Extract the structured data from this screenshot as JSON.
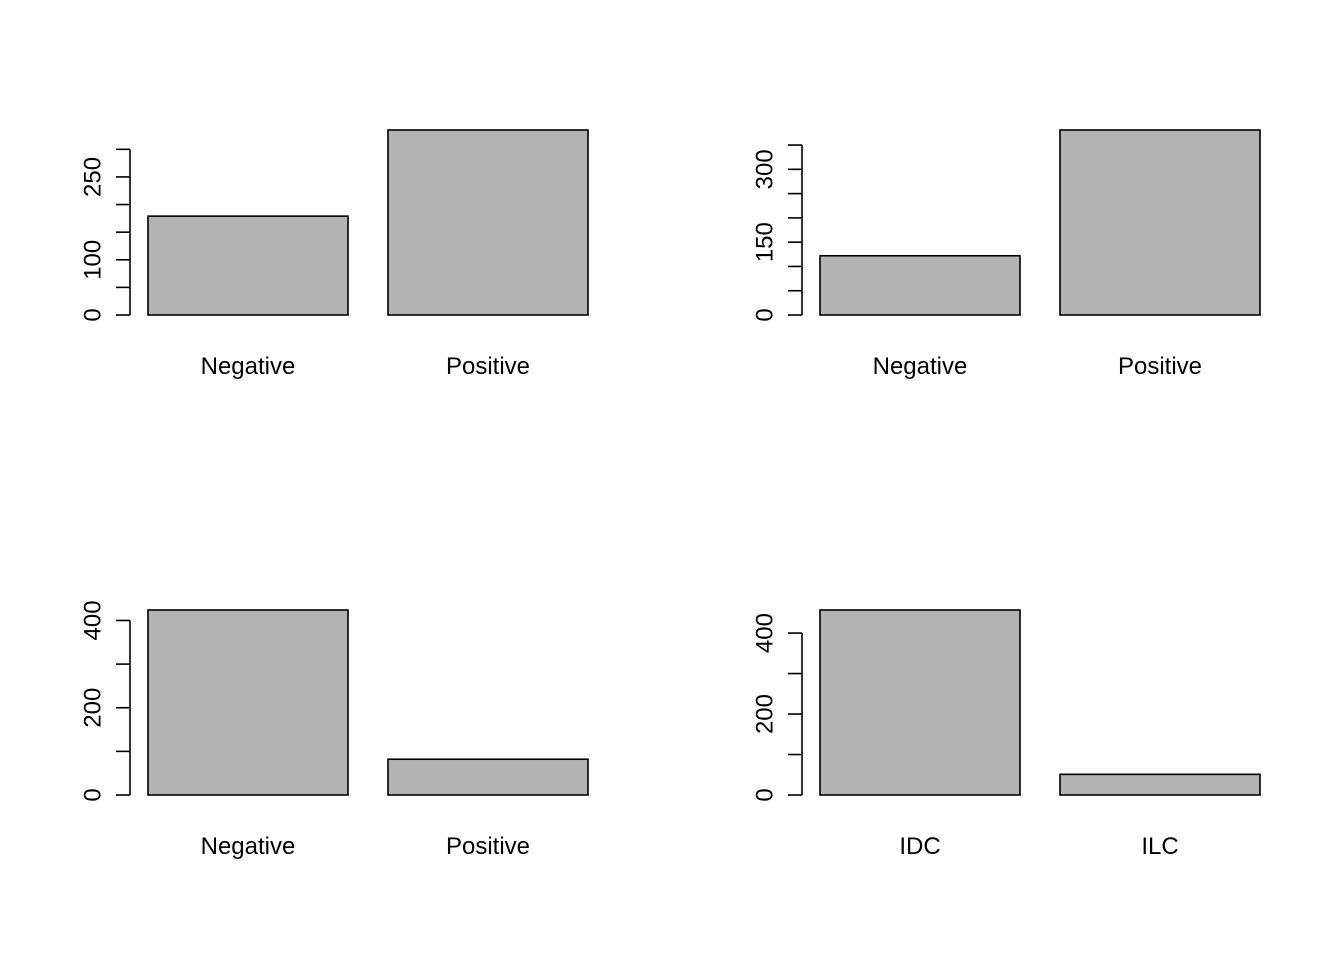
{
  "chart_data": [
    {
      "type": "bar",
      "categories": [
        "Negative",
        "Positive"
      ],
      "values": [
        179,
        335
      ],
      "yticks": [
        0,
        100,
        250
      ],
      "yminor_step": 50,
      "ylim": [
        0,
        335
      ],
      "bar_color": "#b3b3b3",
      "title": "",
      "xlabel": "",
      "ylabel": ""
    },
    {
      "type": "bar",
      "categories": [
        "Negative",
        "Positive"
      ],
      "values": [
        122,
        381
      ],
      "yticks": [
        0,
        150,
        300
      ],
      "yminor_step": 50,
      "ylim": [
        0,
        381
      ],
      "bar_color": "#b3b3b3",
      "title": "",
      "xlabel": "",
      "ylabel": ""
    },
    {
      "type": "bar",
      "categories": [
        "Negative",
        "Positive"
      ],
      "values": [
        424,
        82
      ],
      "yticks": [
        0,
        200,
        400
      ],
      "yminor_step": 100,
      "ylim": [
        0,
        424
      ],
      "bar_color": "#b3b3b3",
      "title": "",
      "xlabel": "",
      "ylabel": ""
    },
    {
      "type": "bar",
      "categories": [
        "IDC",
        "ILC"
      ],
      "values": [
        457,
        51
      ],
      "yticks": [
        0,
        200,
        400
      ],
      "yminor_step": 100,
      "ylim": [
        0,
        457
      ],
      "bar_color": "#b3b3b3",
      "title": "",
      "xlabel": "",
      "ylabel": ""
    }
  ]
}
